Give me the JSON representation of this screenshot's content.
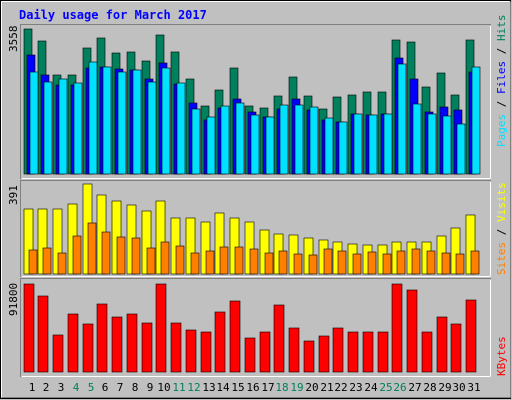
{
  "chart_data": {
    "type": "bar",
    "title": "Daily usage for March 2017",
    "colors": {
      "background": "#C0C0C0",
      "title": "#0000FF",
      "hits": "#00805C",
      "files": "#0000FF",
      "pages": "#00E0FF",
      "visits": "#FFFF00",
      "sites": "#FF8000",
      "kbytes": "#FF0000",
      "weekday_label": "#000000",
      "weekend_label": "#00805C"
    },
    "x_labels": [
      "1",
      "2",
      "3",
      "4",
      "5",
      "6",
      "7",
      "8",
      "9",
      "10",
      "11",
      "12",
      "13",
      "14",
      "15",
      "16",
      "17",
      "18",
      "19",
      "20",
      "21",
      "22",
      "23",
      "24",
      "25",
      "26",
      "27",
      "28",
      "29",
      "30",
      "31"
    ],
    "weekend_days": [
      4,
      5,
      11,
      12,
      18,
      19,
      25,
      26
    ],
    "panels": [
      {
        "name": "top",
        "ymax_label": "3558",
        "ymax": 3558,
        "label_parts": [
          {
            "text": "Pages",
            "color": "#00E0FF"
          },
          {
            "text": " / ",
            "color": "#000000"
          },
          {
            "text": "Files",
            "color": "#0000FF"
          },
          {
            "text": " / ",
            "color": "#000000"
          },
          {
            "text": "Hits",
            "color": "#00805C"
          }
        ],
        "series": [
          {
            "name": "Hits",
            "color": "#00805C",
            "values": [
              3558,
              3270,
              2427,
              2427,
              3080,
              3338,
              2972,
              3002,
              2773,
              3414,
              2982,
              2321,
              1663,
              2064,
              2589,
              1657,
              1630,
              1911,
              2382,
              1911,
              1585,
              1895,
              1934,
              2003,
              2003,
              3278,
              3240,
              2125,
              2474,
              1938,
              3278
            ]
          },
          {
            "name": "Files",
            "color": "#0000FF",
            "values": [
              2919,
              2440,
              2185,
              2185,
              2592,
              2616,
              2588,
              2549,
              2337,
              2713,
              2215,
              1744,
              1325,
              1623,
              1832,
              1511,
              1401,
              1604,
              1848,
              1560,
              1323,
              1287,
              1482,
              1444,
              1472,
              2839,
              2321,
              1516,
              1637,
              1574,
              2507
            ]
          },
          {
            "name": "Pages",
            "color": "#00E0FF",
            "values": [
              2500,
              2265,
              2338,
              2237,
              2755,
              2617,
              2500,
              2549,
              2265,
              2609,
              2236,
              1604,
              1390,
              1665,
              1732,
              1441,
              1406,
              1685,
              1704,
              1654,
              1381,
              1287,
              1482,
              1441,
              1472,
              2706,
              1721,
              1482,
              1418,
              1220,
              2617
            ]
          }
        ]
      },
      {
        "name": "middle",
        "ymax_label": "391",
        "ymax": 391,
        "label_parts": [
          {
            "text": "Sites",
            "color": "#FF8000"
          },
          {
            "text": " / ",
            "color": "#000000"
          },
          {
            "text": "Visits",
            "color": "#FFFF00"
          }
        ],
        "series": [
          {
            "name": "Visits",
            "color": "#FFFF00",
            "values": [
              283,
              283,
              283,
              306,
              391,
              345,
              319,
              298,
              272,
              318,
              245,
              242,
              226,
              266,
              242,
              228,
              192,
              175,
              168,
              158,
              148,
              137,
              130,
              124,
              124,
              140,
              140,
              140,
              163,
              201,
              255
            ]
          },
          {
            "name": "Sites",
            "color": "#FF8000",
            "values": [
              106,
              114,
              93,
              167,
              220,
              183,
              162,
              156,
              114,
              140,
              120,
              93,
              99,
              117,
              119,
              107,
              93,
              99,
              86,
              84,
              107,
              102,
              86,
              96,
              86,
              101,
              107,
              102,
              93,
              86,
              99
            ]
          }
        ]
      },
      {
        "name": "bottom",
        "ymax_label": "91800",
        "ymax": 91800,
        "label_parts": [
          {
            "text": "KBytes",
            "color": "#FF0000"
          }
        ],
        "series": [
          {
            "name": "KBytes",
            "color": "#FF0000",
            "values": [
              91800,
              79335,
              38544,
              60562,
              50100,
              71200,
              57800,
              60500,
              51400,
              91800,
              51500,
              44300,
              42000,
              62200,
              73700,
              35300,
              41300,
              69700,
              45500,
              32400,
              37200,
              46400,
              41300,
              41300,
              41300,
              91800,
              85900,
              42000,
              57700,
              50500,
              74900
            ]
          }
        ]
      }
    ]
  }
}
